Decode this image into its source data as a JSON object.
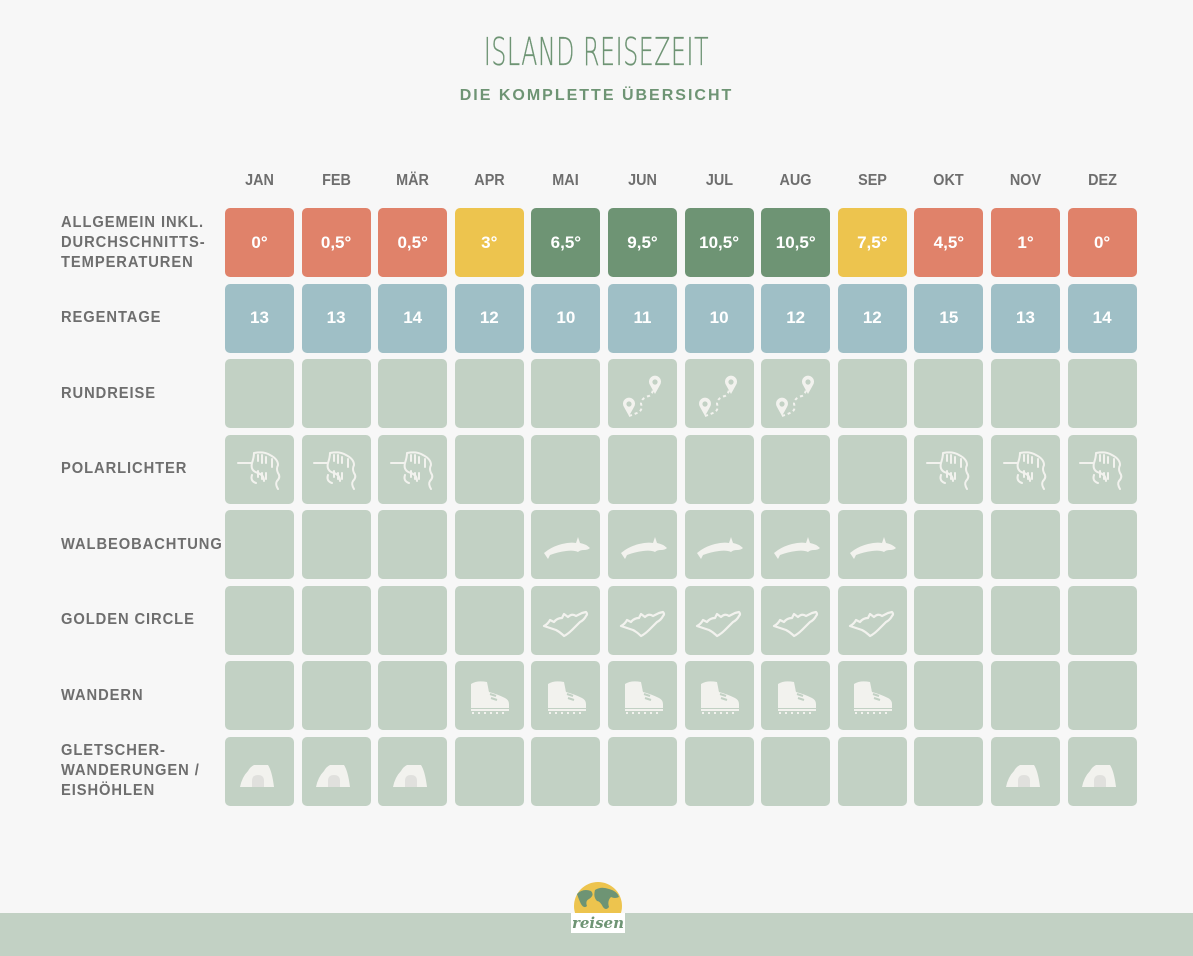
{
  "header": {
    "title": "ISLAND REISEZEIT",
    "subtitle": "DIE KOMPLETTE ÜBERSICHT"
  },
  "months": [
    "JAN",
    "FEB",
    "MÄR",
    "APR",
    "MAI",
    "JUN",
    "JUL",
    "AUG",
    "SEP",
    "OKT",
    "NOV",
    "DEZ"
  ],
  "colors": {
    "cold": "#e0826a",
    "mild": "#edc44e",
    "warm": "#6e9474",
    "rain": "#9fbfc6",
    "inactive": "#c2d1c4",
    "label": "#6e6e6e",
    "title": "#6e9474",
    "background": "#f7f7f7"
  },
  "rows": [
    {
      "label": "ALLGEMEIN INKL. DURCHSCHNITTS- TEMPERATUREN",
      "label_lines": [
        "ALLGEMEIN INKL.",
        "DURCHSCHNITTS-",
        "TEMPERATUREN"
      ],
      "type": "temperature",
      "values": [
        "0°",
        "0,5°",
        "0,5°",
        "3°",
        "6,5°",
        "9,5°",
        "10,5°",
        "10,5°",
        "7,5°",
        "4,5°",
        "1°",
        "0°"
      ],
      "levels": [
        "cold",
        "cold",
        "cold",
        "mild",
        "warm",
        "warm",
        "warm",
        "warm",
        "mild",
        "cold",
        "cold",
        "cold"
      ]
    },
    {
      "label": "REGENTAGE",
      "label_lines": [
        "REGENTAGE"
      ],
      "type": "rain",
      "values": [
        "13",
        "13",
        "14",
        "12",
        "10",
        "11",
        "10",
        "12",
        "12",
        "15",
        "13",
        "14"
      ]
    },
    {
      "label": "RUNDREISE",
      "label_lines": [
        "RUNDREISE"
      ],
      "type": "icon",
      "icon": "route-pins-icon",
      "active": [
        false,
        false,
        false,
        false,
        false,
        true,
        true,
        true,
        false,
        false,
        false,
        false
      ]
    },
    {
      "label": "POLARLICHTER",
      "label_lines": [
        "POLARLICHTER"
      ],
      "type": "icon",
      "icon": "aurora-icon",
      "active": [
        true,
        true,
        true,
        false,
        false,
        false,
        false,
        false,
        false,
        true,
        true,
        true
      ]
    },
    {
      "label": "WALBEOBACHTUNG",
      "label_lines": [
        "WALBEOBACHTUNG"
      ],
      "type": "icon",
      "icon": "whale-icon",
      "active": [
        false,
        false,
        false,
        false,
        true,
        true,
        true,
        true,
        true,
        false,
        false,
        false
      ]
    },
    {
      "label": "GOLDEN CIRCLE",
      "label_lines": [
        "GOLDEN CIRCLE"
      ],
      "type": "icon",
      "icon": "iceland-outline-icon",
      "active": [
        false,
        false,
        false,
        false,
        true,
        true,
        true,
        true,
        true,
        false,
        false,
        false
      ]
    },
    {
      "label": "WANDERN",
      "label_lines": [
        "WANDERN"
      ],
      "type": "icon",
      "icon": "hiking-boot-icon",
      "active": [
        false,
        false,
        false,
        true,
        true,
        true,
        true,
        true,
        true,
        false,
        false,
        false
      ]
    },
    {
      "label": "GLETSCHER- WANDERUNGEN / EISHÖHLEN",
      "label_lines": [
        "GLETSCHER-",
        "WANDERUNGEN /",
        "EISHÖHLEN"
      ],
      "type": "icon",
      "icon": "ice-cave-icon",
      "active": [
        true,
        true,
        true,
        false,
        false,
        false,
        false,
        false,
        false,
        false,
        true,
        true
      ]
    }
  ],
  "footer": {
    "logo_text": "reisen",
    "logo_icon": "globe-logo-icon"
  }
}
